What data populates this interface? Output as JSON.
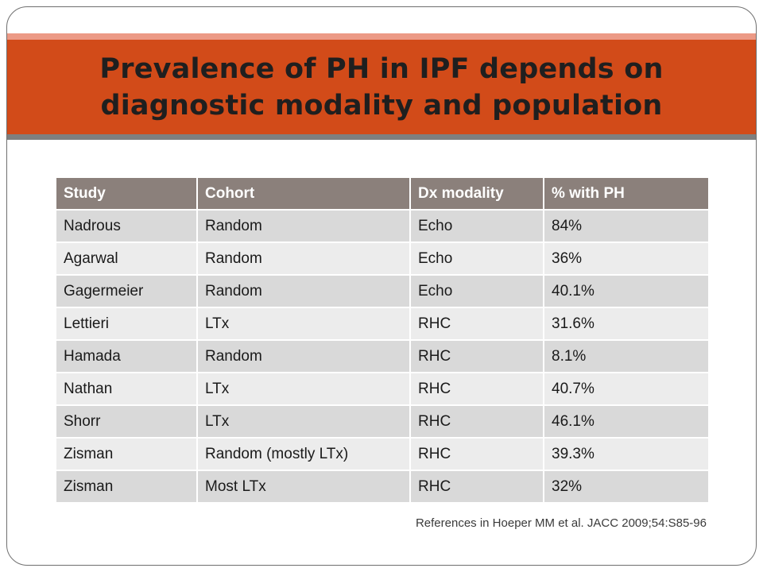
{
  "slide": {
    "title_line1": "Prevalence of PH in IPF depends on",
    "title_line2": "diagnostic modality and population",
    "reference": "References in Hoeper MM et al. JACC 2009;54:S85-96"
  },
  "colors": {
    "title_band": "#d24b19",
    "title_accent_top": "#ec9a86",
    "title_accent_bottom": "#7f7f7f",
    "table_header": "#8b807b",
    "row_dark": "#d9d9d9",
    "row_light": "#ececec"
  },
  "table": {
    "headers": [
      "Study",
      "Cohort",
      "Dx modality",
      "% with PH"
    ],
    "rows": [
      [
        "Nadrous",
        "Random",
        "Echo",
        "84%"
      ],
      [
        "Agarwal",
        "Random",
        "Echo",
        "36%"
      ],
      [
        "Gagermeier",
        "Random",
        "Echo",
        "40.1%"
      ],
      [
        "Lettieri",
        "LTx",
        "RHC",
        "31.6%"
      ],
      [
        "Hamada",
        "Random",
        "RHC",
        "8.1%"
      ],
      [
        "Nathan",
        "LTx",
        "RHC",
        "40.7%"
      ],
      [
        "Shorr",
        "LTx",
        "RHC",
        "46.1%"
      ],
      [
        "Zisman",
        "Random (mostly LTx)",
        "RHC",
        "39.3%"
      ],
      [
        "Zisman",
        "Most LTx",
        "RHC",
        "32%"
      ]
    ]
  }
}
